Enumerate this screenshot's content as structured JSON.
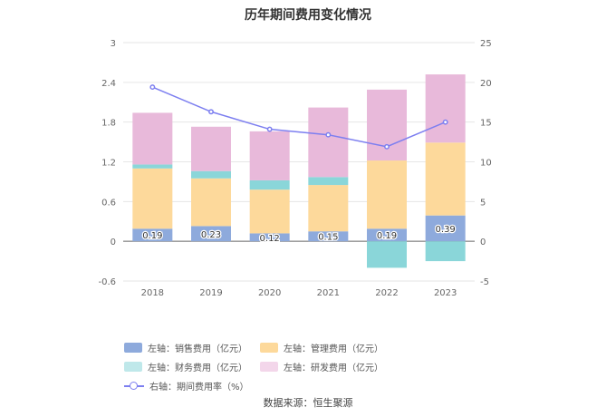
{
  "chart_data": {
    "type": "bar",
    "title": "历年期间费用变化情况",
    "categories": [
      "2018",
      "2019",
      "2020",
      "2021",
      "2022",
      "2023"
    ],
    "y_left": {
      "ticks": [
        "3",
        "2.4",
        "1.8",
        "1.2",
        "0.6",
        "0",
        "-0.6"
      ],
      "ylim": [
        -0.6,
        3
      ]
    },
    "y_right": {
      "ticks": [
        "25",
        "20",
        "15",
        "10",
        "5",
        "0",
        "-5"
      ],
      "ylim": [
        -5,
        25
      ]
    },
    "stacked": true,
    "series": [
      {
        "name": "左轴：销售费用（亿元）",
        "axis": "left",
        "type": "bar",
        "color": "#8eaadc",
        "values": [
          0.19,
          0.23,
          0.12,
          0.15,
          0.19,
          0.39
        ],
        "labels": [
          "0.19",
          "0.23",
          "0.12",
          "0.15",
          "0.19",
          "0.39"
        ]
      },
      {
        "name": "左轴：管理费用（亿元）",
        "axis": "left",
        "type": "bar",
        "color": "#fdd99b",
        "values": [
          0.91,
          0.72,
          0.66,
          0.7,
          1.03,
          1.1
        ]
      },
      {
        "name": "左轴：财务费用（亿元）",
        "axis": "left",
        "type": "bar",
        "color": "#8ad6d9",
        "values": [
          0.06,
          0.11,
          0.14,
          0.12,
          -0.4,
          -0.3
        ]
      },
      {
        "name": "左轴：研发费用（亿元）",
        "axis": "left",
        "type": "bar",
        "color": "#e8b9da",
        "values": [
          0.78,
          0.67,
          0.74,
          1.05,
          1.07,
          1.03
        ]
      },
      {
        "name": "右轴：期间费用率（%）",
        "axis": "right",
        "type": "line",
        "color": "#7d7ff0",
        "values": [
          19.4,
          16.3,
          14.1,
          13.4,
          11.9,
          15.0
        ]
      }
    ],
    "grid": true,
    "legend_position": "bottom"
  },
  "legend": [
    {
      "label": "左轴：销售费用（亿元）",
      "kind": "bar",
      "color": "#8eaadc"
    },
    {
      "label": "左轴：管理费用（亿元）",
      "kind": "bar",
      "color": "#fdd99b"
    },
    {
      "label": "左轴：财务费用（亿元）",
      "kind": "bar",
      "color": "#bfe8ea"
    },
    {
      "label": "左轴：研发费用（亿元）",
      "kind": "bar",
      "color": "#f3d6ea"
    },
    {
      "label": "右轴：期间费用率（%）",
      "kind": "line",
      "color": "#7d7ff0"
    }
  ],
  "source": "数据来源：恒生聚源"
}
